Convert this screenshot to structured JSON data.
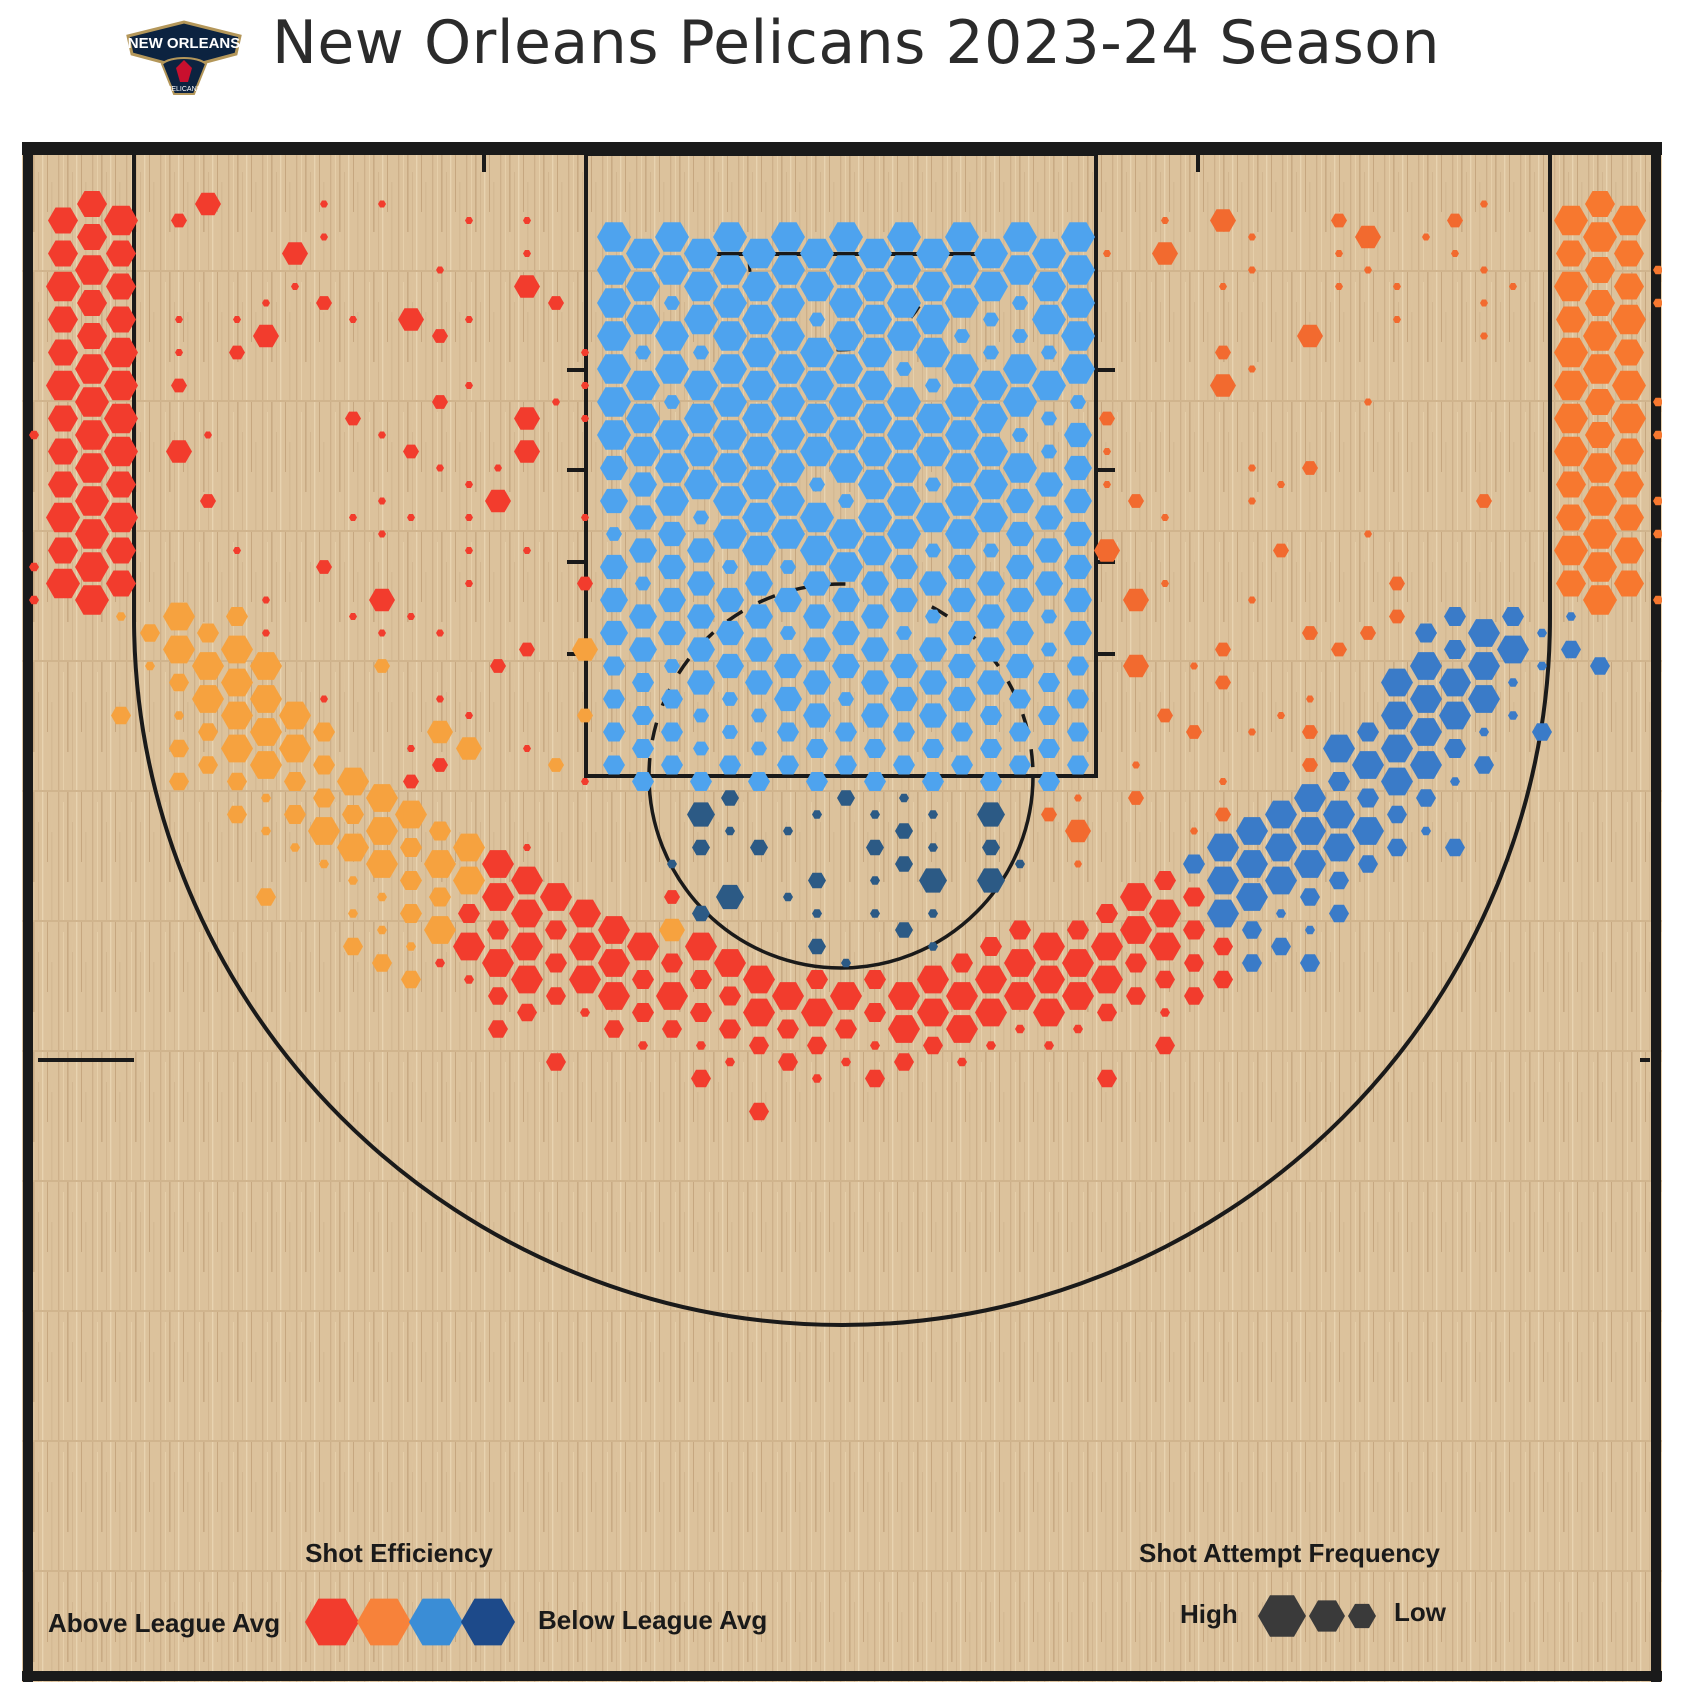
{
  "header": {
    "title": "New Orleans Pelicans 2023-24 Season",
    "logo_text_top": "NEW ORLEANS",
    "logo_text_bottom": "PELICANS"
  },
  "legend": {
    "efficiency_title": "Shot Efficiency",
    "above_label": "Above League Avg",
    "below_label": "Below League Avg",
    "efficiency_colors": [
      "#f23c2d",
      "#f7823a",
      "#3a8dd6",
      "#1d4a8a"
    ],
    "frequency_title": "Shot Attempt Frequency",
    "high_label": "High",
    "low_label": "Low"
  },
  "colors": {
    "court_wood": "#dcc29c",
    "court_line": "#1a1a1a",
    "paint_hex": "#4ea3ee",
    "rim_hex": "#2c5a85",
    "right_wing_hex": "#3a7bc8",
    "left_wing_hex": "#f6a23f",
    "top_arc_hex": "#f23c2d",
    "left_corner_hex": "#f23c2d",
    "right_corner_hex": "#f7782f",
    "midrange_right_hex": "#f26a2f"
  },
  "chart_data": {
    "type": "hexbin shot chart",
    "title": "New Orleans Pelicans 2023-24 Season",
    "legend": [
      {
        "label": "Above League Avg",
        "color": "#f23c2d"
      },
      {
        "label": "Above League Avg",
        "color": "#f7823a"
      },
      {
        "label": "Below League Avg",
        "color": "#3a8dd6"
      },
      {
        "label": "Below League Avg",
        "color": "#1d4a8a"
      }
    ],
    "size_legend": [
      "High",
      "Low"
    ],
    "zones": [
      {
        "zone": "left corner three",
        "efficiency": "above league avg",
        "frequency": "high"
      },
      {
        "zone": "right corner three",
        "efficiency": "above league avg",
        "frequency": "high"
      },
      {
        "zone": "left wing three",
        "efficiency": "above league avg",
        "frequency": "high"
      },
      {
        "zone": "top of key three",
        "efficiency": "above league avg",
        "frequency": "high"
      },
      {
        "zone": "right wing three",
        "efficiency": "below league avg",
        "frequency": "high"
      },
      {
        "zone": "restricted area / paint",
        "efficiency": "below league avg",
        "frequency": "high"
      },
      {
        "zone": "free throw circle",
        "efficiency": "below league avg",
        "frequency": "medium"
      },
      {
        "zone": "left mid-range",
        "efficiency": "above league avg",
        "frequency": "low"
      },
      {
        "zone": "right mid-range",
        "efficiency": "above league avg",
        "frequency": "low"
      }
    ]
  }
}
